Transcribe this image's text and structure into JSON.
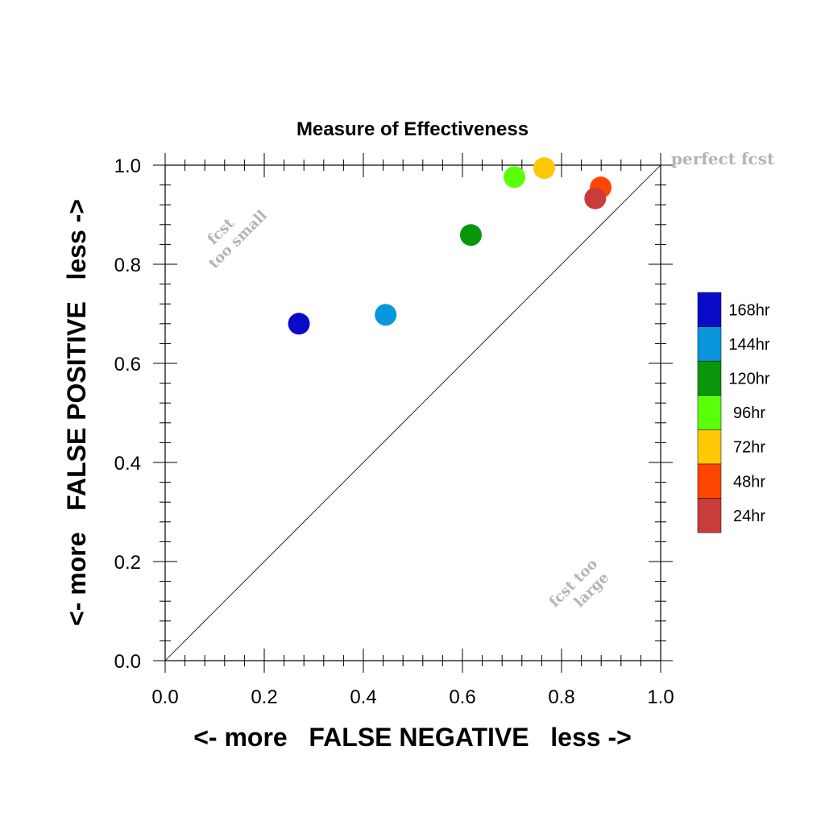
{
  "chart_data": {
    "type": "scatter",
    "title": "Measure of Effectiveness",
    "xlabel": "<- more   FALSE NEGATIVE   less ->",
    "ylabel": "<- more   FALSE POSITIVE   less ->",
    "xlim": [
      0.0,
      1.0
    ],
    "ylim": [
      0.0,
      1.0
    ],
    "xticks": [
      "0.0",
      "0.2",
      "0.4",
      "0.6",
      "0.8",
      "1.0"
    ],
    "yticks": [
      "0.0",
      "0.2",
      "0.4",
      "0.6",
      "0.8",
      "1.0"
    ],
    "grid": false,
    "reference_line": "diagonal",
    "annotations": {
      "perfect": "perfect fcst",
      "small_line1": "fcst",
      "small_line2": "too small",
      "large_line1": "fcst too",
      "large_line2": "large"
    },
    "series": [
      {
        "name": "168hr",
        "color": "#0a0ac8",
        "x": 0.27,
        "y": 0.68
      },
      {
        "name": "144hr",
        "color": "#0a96dc",
        "x": 0.445,
        "y": 0.698
      },
      {
        "name": "120hr",
        "color": "#0a960a",
        "x": 0.617,
        "y": 0.859
      },
      {
        "name": "96hr",
        "color": "#5aff0a",
        "x": 0.705,
        "y": 0.976
      },
      {
        "name": "72hr",
        "color": "#ffc805",
        "x": 0.765,
        "y": 0.994
      },
      {
        "name": "48hr",
        "color": "#ff4600",
        "x": 0.879,
        "y": 0.955
      },
      {
        "name": "24hr",
        "color": "#c83c3c",
        "x": 0.868,
        "y": 0.933
      }
    ],
    "legend": {
      "position": "right",
      "order": [
        "168hr",
        "144hr",
        "120hr",
        "96hr",
        "72hr",
        "48hr",
        "24hr"
      ]
    }
  }
}
